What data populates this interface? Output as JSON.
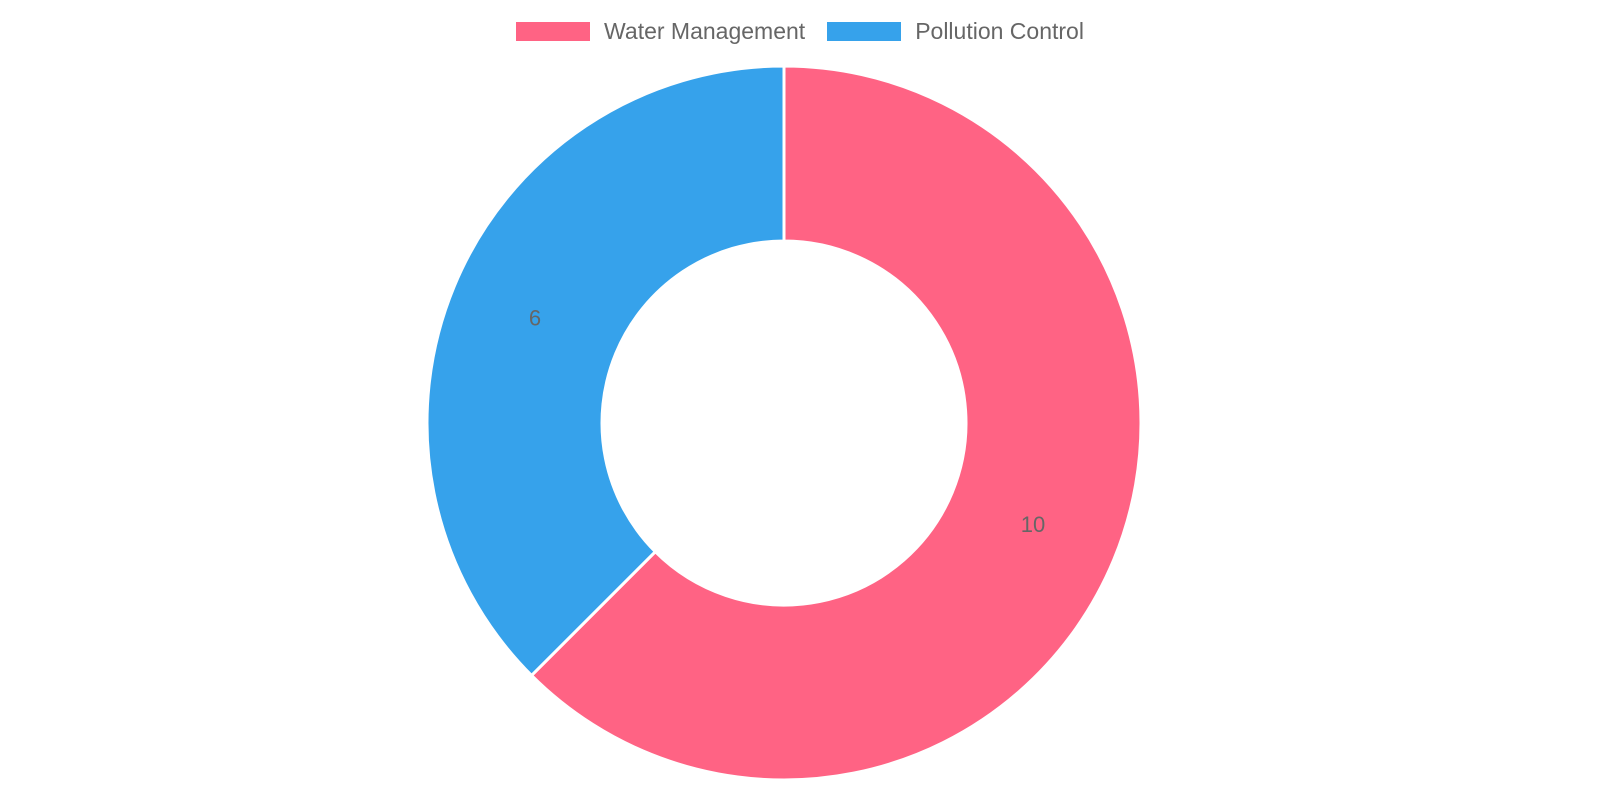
{
  "chart_data": {
    "type": "pie",
    "variant": "doughnut",
    "title": "",
    "legend_position": "top",
    "categories": [
      "Water Management",
      "Pollution Control"
    ],
    "values": [
      10,
      6
    ],
    "colors": [
      "#ff6384",
      "#36a2eb"
    ],
    "data_labels": [
      "10",
      "6"
    ]
  }
}
